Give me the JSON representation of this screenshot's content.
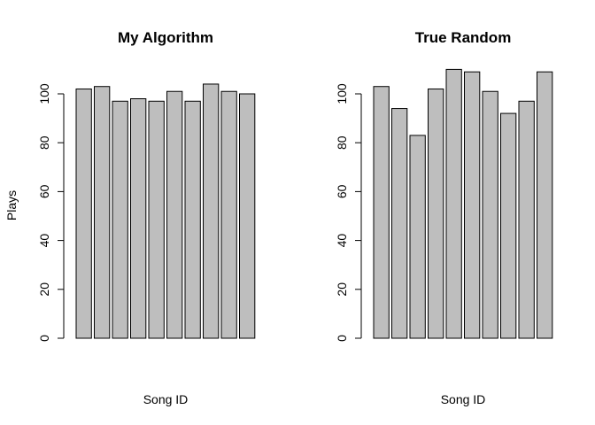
{
  "figure": {
    "ylabel": "Plays"
  },
  "chart_data": [
    {
      "type": "bar",
      "title": "My Algorithm",
      "xlabel": "Song ID",
      "ylabel": "Plays",
      "ylim": [
        0,
        110
      ],
      "yticks": [
        0,
        20,
        40,
        60,
        80,
        100
      ],
      "values": [
        102,
        103,
        97,
        98,
        97,
        101,
        97,
        104,
        101,
        100
      ],
      "bar_color": "#bebebe",
      "grid": false,
      "legend": "none"
    },
    {
      "type": "bar",
      "title": "True Random",
      "xlabel": "Song ID",
      "ylabel": "",
      "ylim": [
        0,
        110
      ],
      "yticks": [
        0,
        20,
        40,
        60,
        80,
        100
      ],
      "values": [
        103,
        94,
        83,
        102,
        110,
        109,
        101,
        92,
        97,
        109
      ],
      "bar_color": "#bebebe",
      "grid": false,
      "legend": "none"
    }
  ]
}
